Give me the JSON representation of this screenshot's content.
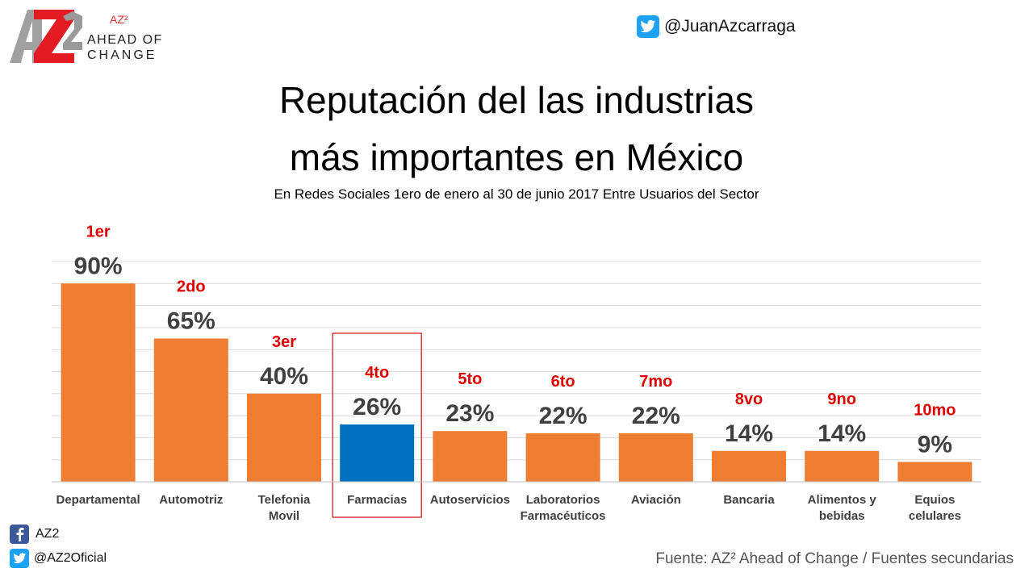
{
  "header": {
    "logo_text": "AZ²",
    "logo_line1": "AHEAD OF",
    "logo_line2": "CHANGE",
    "twitter_handle": "@JuanAzcarraga"
  },
  "title_line1": "Reputación del las industrias",
  "title_line2": "más importantes en México",
  "subtitle": "En Redes Sociales 1ero de enero al 30 de junio 2017 Entre Usuarios del Sector",
  "colors": {
    "bar": "#ed7d31",
    "highlight_bar": "#0070c0",
    "rank_text": "#e00000",
    "value_text": "#404040",
    "highlight_box": "#d02020",
    "grid": "#d9d9d9"
  },
  "chart_data": {
    "type": "bar",
    "categories": [
      [
        "Departamental"
      ],
      [
        "Automotriz"
      ],
      [
        "Telefonia",
        "Movil"
      ],
      [
        "Farmacias"
      ],
      [
        "Autoservicios"
      ],
      [
        "Laboratorios",
        "Farmacéuticos"
      ],
      [
        "Aviación"
      ],
      [
        "Bancaria"
      ],
      [
        "Alimentos y",
        "bebidas"
      ],
      [
        "Equios",
        "celulares"
      ]
    ],
    "values": [
      90,
      65,
      40,
      26,
      23,
      22,
      22,
      14,
      14,
      9
    ],
    "value_labels": [
      "90%",
      "65%",
      "40%",
      "26%",
      "23%",
      "22%",
      "22%",
      "14%",
      "14%",
      "9%"
    ],
    "rank_labels": [
      "1er",
      "2do",
      "3er",
      "4to",
      "5to",
      "6to",
      "7mo",
      "8vo",
      "9no",
      "10mo"
    ],
    "highlight_index": 3,
    "ylim": [
      0,
      100
    ],
    "gridlines": true
  },
  "footer": {
    "facebook_name": "AZ2",
    "twitter_handle": "@AZ2Oficial",
    "source": "Fuente: AZ² Ahead of Change / Fuentes secundarias"
  }
}
